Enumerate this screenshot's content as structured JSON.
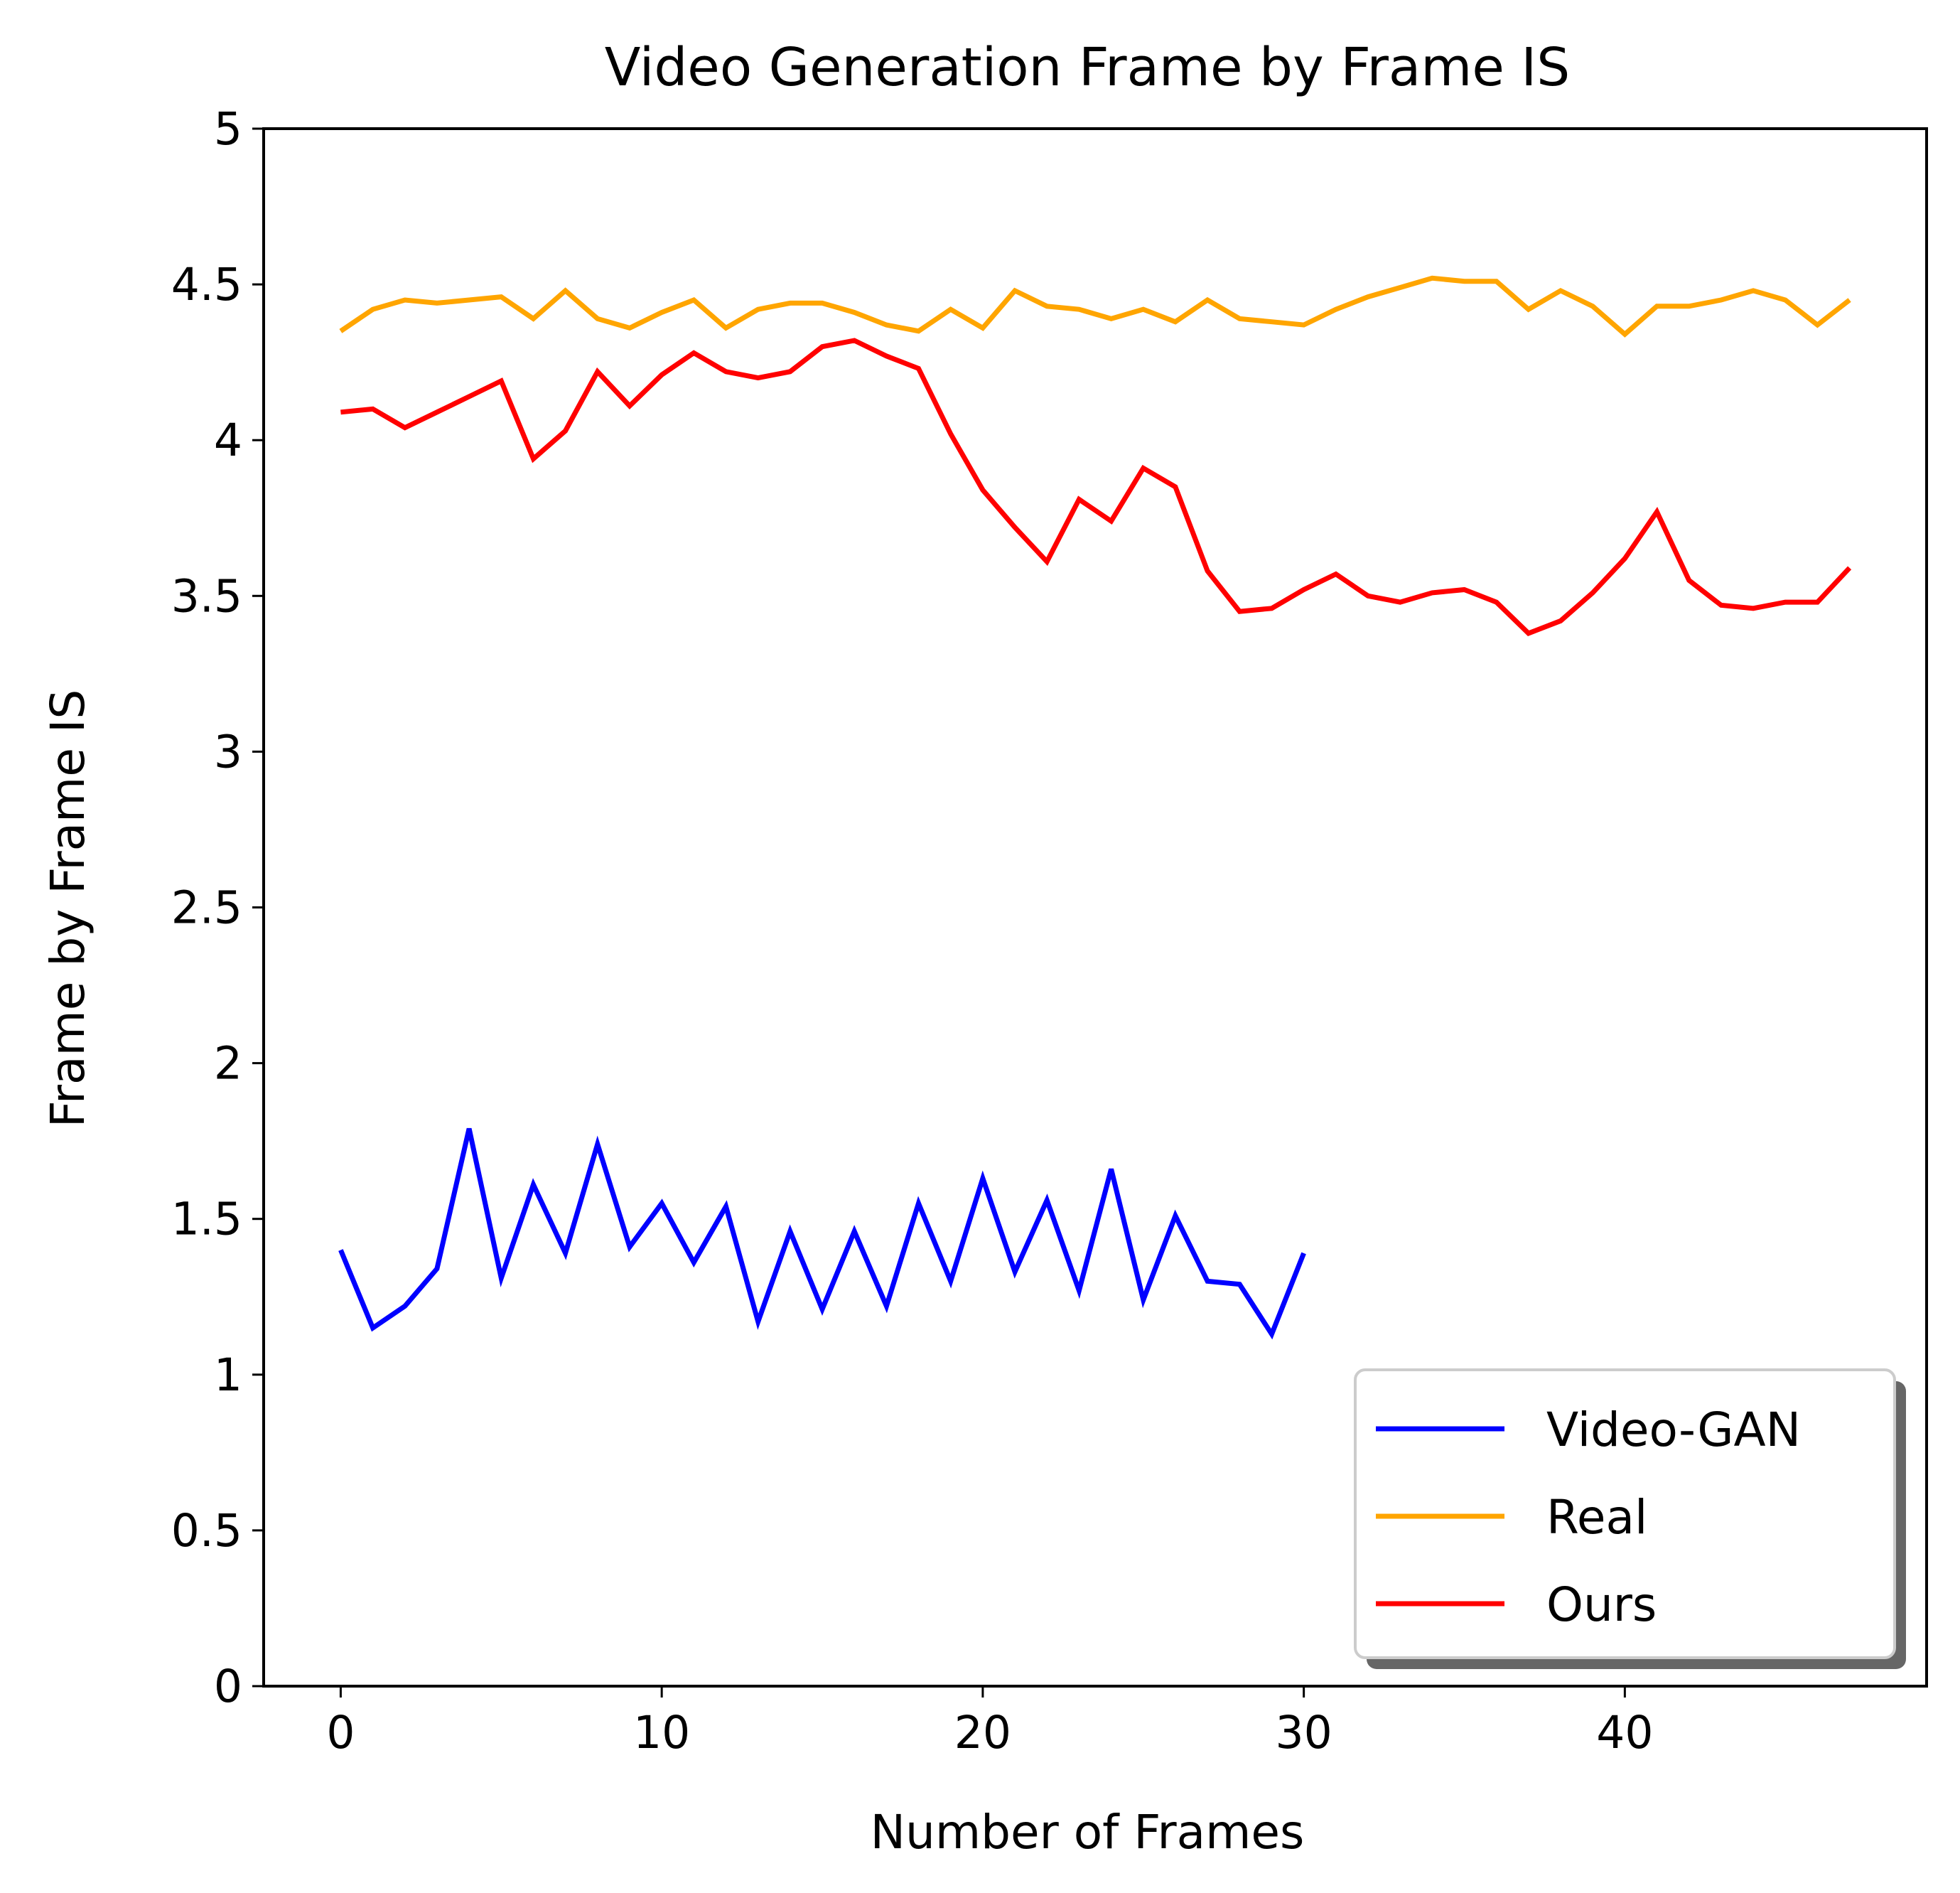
{
  "chart_data": {
    "type": "line",
    "title": "Video Generation Frame by Frame IS",
    "xlabel": "Number of Frames",
    "ylabel": "Frame by Frame IS",
    "xlim": [
      -2.4,
      49.4
    ],
    "ylim": [
      0,
      5
    ],
    "xticks": [
      0,
      10,
      20,
      30,
      40
    ],
    "xtick_labels": [
      "0",
      "10",
      "20",
      "30",
      "40"
    ],
    "yticks": [
      0,
      0.5,
      1,
      1.5,
      2,
      2.5,
      3,
      3.5,
      4,
      4.5,
      5
    ],
    "ytick_labels": [
      "0",
      "0.5",
      "1",
      "1.5",
      "2",
      "2.5",
      "3",
      "3.5",
      "4",
      "4.5",
      "5"
    ],
    "grid": false,
    "legend_position": "bottom-right",
    "series": [
      {
        "name": "Video-GAN",
        "color": "#0000ff",
        "x": [
          0,
          1,
          2,
          3,
          4,
          5,
          6,
          7,
          8,
          9,
          10,
          11,
          12,
          13,
          14,
          15,
          16,
          17,
          18,
          19,
          20,
          21,
          22,
          23,
          24,
          25,
          26,
          27,
          28,
          29,
          30
        ],
        "y": [
          1.4,
          1.15,
          1.22,
          1.34,
          1.79,
          1.31,
          1.61,
          1.39,
          1.74,
          1.41,
          1.55,
          1.36,
          1.54,
          1.17,
          1.46,
          1.21,
          1.46,
          1.22,
          1.55,
          1.3,
          1.63,
          1.33,
          1.56,
          1.27,
          1.66,
          1.24,
          1.51,
          1.3,
          1.29,
          1.13,
          1.39
        ]
      },
      {
        "name": "Real",
        "color": "#ffa500",
        "x": [
          0,
          1,
          2,
          3,
          4,
          5,
          6,
          7,
          8,
          9,
          10,
          11,
          12,
          13,
          14,
          15,
          16,
          17,
          18,
          19,
          20,
          21,
          22,
          23,
          24,
          25,
          26,
          27,
          28,
          29,
          30,
          31,
          32,
          33,
          34,
          35,
          36,
          37,
          38,
          39,
          40,
          41,
          42,
          43,
          44,
          45,
          46,
          47
        ],
        "y": [
          4.35,
          4.42,
          4.45,
          4.44,
          4.45,
          4.46,
          4.39,
          4.48,
          4.39,
          4.36,
          4.41,
          4.45,
          4.36,
          4.42,
          4.44,
          4.44,
          4.41,
          4.37,
          4.35,
          4.42,
          4.36,
          4.48,
          4.43,
          4.42,
          4.39,
          4.42,
          4.38,
          4.45,
          4.39,
          4.38,
          4.37,
          4.42,
          4.46,
          4.49,
          4.52,
          4.51,
          4.51,
          4.42,
          4.48,
          4.43,
          4.34,
          4.43,
          4.43,
          4.45,
          4.48,
          4.45,
          4.37,
          4.45
        ]
      },
      {
        "name": "Ours",
        "color": "#ff0000",
        "x": [
          0,
          1,
          2,
          3,
          4,
          5,
          6,
          7,
          8,
          9,
          10,
          11,
          12,
          13,
          14,
          15,
          16,
          17,
          18,
          19,
          20,
          21,
          22,
          23,
          24,
          25,
          26,
          27,
          28,
          29,
          30,
          31,
          32,
          33,
          34,
          35,
          36,
          37,
          38,
          39,
          40,
          41,
          42,
          43,
          44,
          45,
          46,
          47
        ],
        "y": [
          4.09,
          4.1,
          4.04,
          4.09,
          4.14,
          4.19,
          3.94,
          4.03,
          4.22,
          4.11,
          4.21,
          4.28,
          4.22,
          4.2,
          4.22,
          4.3,
          4.32,
          4.27,
          4.23,
          4.02,
          3.84,
          3.72,
          3.61,
          3.81,
          3.74,
          3.91,
          3.85,
          3.58,
          3.45,
          3.46,
          3.52,
          3.57,
          3.5,
          3.48,
          3.51,
          3.52,
          3.48,
          3.38,
          3.42,
          3.51,
          3.62,
          3.77,
          3.55,
          3.47,
          3.46,
          3.48,
          3.48,
          3.59
        ]
      }
    ]
  }
}
